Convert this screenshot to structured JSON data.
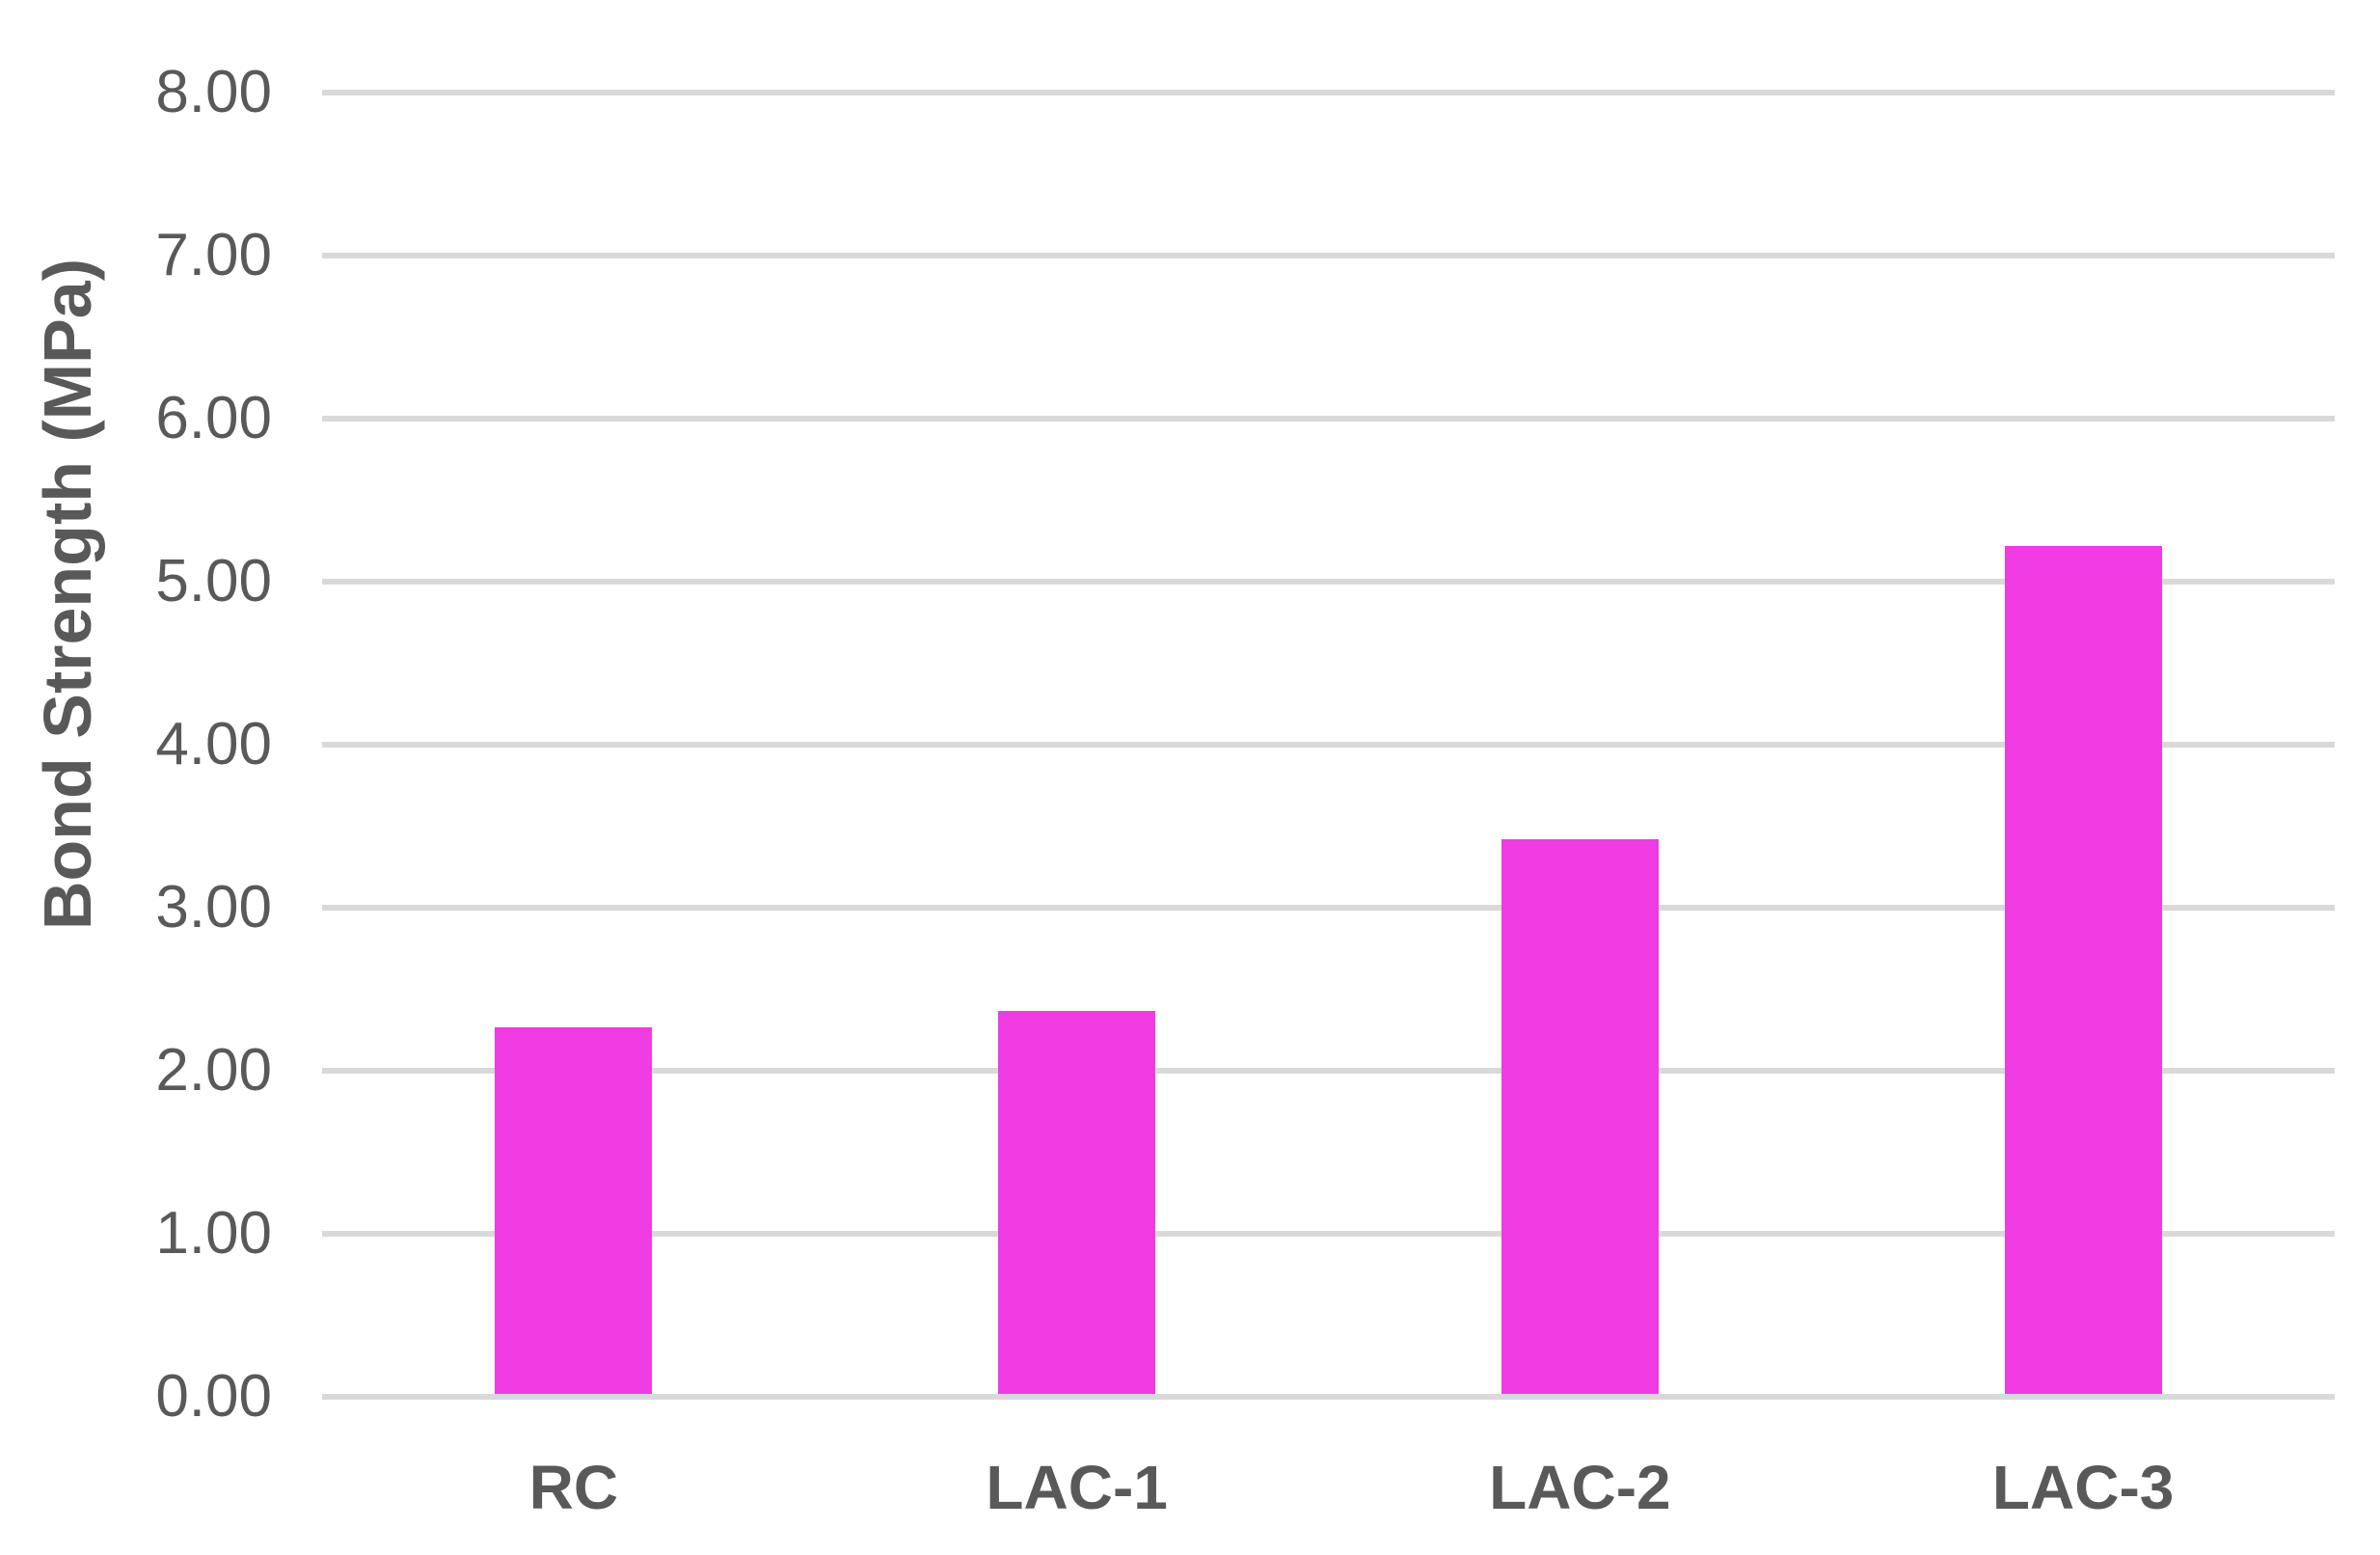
{
  "chart_data": {
    "type": "bar",
    "title": "",
    "xlabel": "",
    "ylabel": "Bond Strength (MPa)",
    "categories": [
      "RC",
      "LAC-1",
      "LAC-2",
      "LAC-3"
    ],
    "values": [
      2.25,
      2.35,
      3.4,
      5.2
    ],
    "ylim": [
      0,
      8
    ],
    "ytick_interval": 1,
    "ytick_labels": [
      "0.00",
      "1.00",
      "2.00",
      "3.00",
      "4.00",
      "5.00",
      "6.00",
      "7.00",
      "8.00"
    ],
    "grid": true,
    "legend_position": "none",
    "colors": {
      "bar": "#ee3ce2",
      "gridline": "#d9d9d9",
      "text": "#595959",
      "background": "#ffffff"
    }
  }
}
